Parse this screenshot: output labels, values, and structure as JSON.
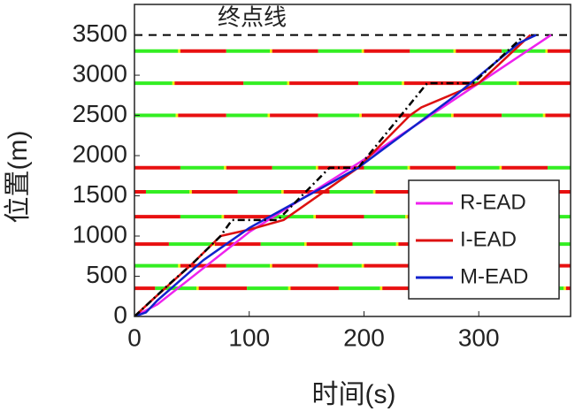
{
  "chart_data": {
    "type": "line",
    "xlabel": "时间(s)",
    "ylabel": "位置(m)",
    "xlim": [
      0,
      380
    ],
    "xticks": [
      0,
      100,
      200,
      300
    ],
    "ylim": [
      0,
      3880
    ],
    "yticks": [
      0,
      500,
      1000,
      1500,
      2000,
      2500,
      3000,
      3500
    ],
    "finish_line": {
      "label": "终点线",
      "value": 3500,
      "color": "#000000"
    },
    "signals": [
      {
        "position": 350,
        "offset": 18,
        "red": 42,
        "green": 38
      },
      {
        "position": 630,
        "offset": 0,
        "red": 40,
        "green": 40
      },
      {
        "position": 900,
        "offset": 30,
        "red": 40,
        "green": 40
      },
      {
        "position": 1240,
        "offset": 40,
        "red": 42,
        "green": 38
      },
      {
        "position": 1550,
        "offset": 10,
        "red": 40,
        "green": 40
      },
      {
        "position": 1850,
        "offset": 40,
        "red": 40,
        "green": 40
      },
      {
        "position": 2500,
        "offset": 0,
        "red": 42,
        "green": 38
      },
      {
        "position": 2900,
        "offset": 95,
        "red": 60,
        "green": 40
      },
      {
        "position": 3300,
        "offset": 0,
        "red": 40,
        "green": 40
      }
    ],
    "signal_colors": {
      "red": "#e81010",
      "green": "#33ee22",
      "yellow": "#eeee00"
    },
    "legend": "lower right",
    "series": [
      {
        "name": "R-EAD",
        "color": "#ee22ee",
        "x": [
          0,
          20,
          100,
          200,
          300,
          363
        ],
        "values": [
          0,
          150,
          1050,
          1950,
          2900,
          3500
        ]
      },
      {
        "name": "I-EAD",
        "color": "#dd1111",
        "x": [
          0,
          15,
          50,
          75,
          100,
          130,
          195,
          240,
          250,
          300,
          345
        ],
        "values": [
          0,
          200,
          650,
          1000,
          1080,
          1200,
          1850,
          2500,
          2600,
          2900,
          3500
        ]
      },
      {
        "name": "M-EAD",
        "color": "#1122cc",
        "x": [
          0,
          10,
          20,
          60,
          100,
          195,
          280,
          335,
          350
        ],
        "values": [
          0,
          50,
          200,
          700,
          1100,
          1850,
          2750,
          3400,
          3500
        ]
      },
      {
        "color": "#000000",
        "dash": "dashdot",
        "x": [
          0,
          30,
          50,
          75,
          85,
          125,
          170,
          195,
          255,
          295,
          340
        ],
        "values": [
          0,
          400,
          650,
          1000,
          1200,
          1200,
          1850,
          1850,
          2900,
          2900,
          3500
        ]
      }
    ]
  }
}
